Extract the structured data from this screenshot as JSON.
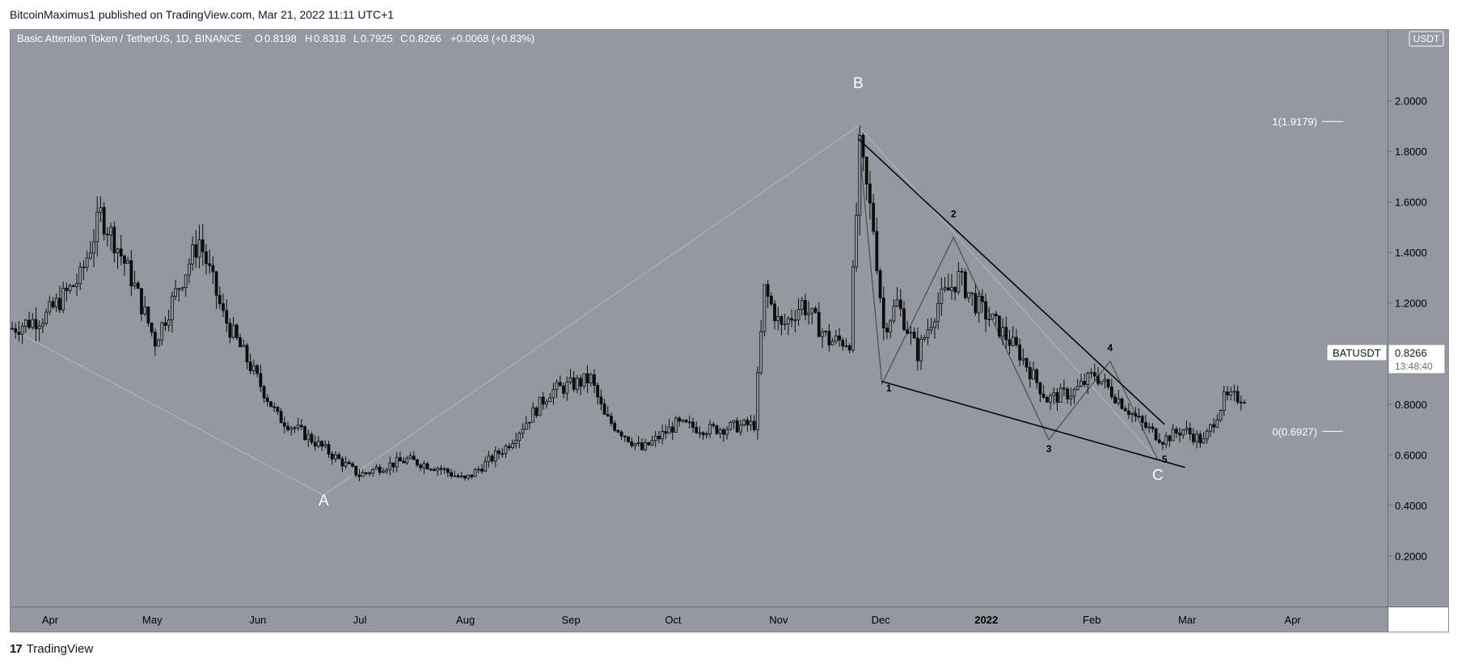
{
  "header": {
    "publisher_line": "BitcoinMaximus1 published on TradingView.com, Mar 21, 2022 11:11 UTC+1"
  },
  "legend": {
    "symbol": "Basic Attention Token / TetherUS, 1D, BINANCE",
    "o_label": "O",
    "o_value": "0.8198",
    "h_label": "H",
    "h_value": "0.8318",
    "l_label": "L",
    "l_value": "0.7925",
    "c_label": "C",
    "c_value": "0.8266",
    "change": "+0.0068 (+0.83%)"
  },
  "currency_badge": "USDT",
  "price_tag": {
    "symbol": "BATUSDT",
    "price": "0.8266",
    "countdown": "13:48:40"
  },
  "footer": {
    "logo_mark": "17",
    "brand": "TradingView"
  },
  "colors": {
    "chart_bg": "#9598a1",
    "price_axis_bg": "#9598a1",
    "candle": "#0d0d0d",
    "axis_text": "#000000",
    "annotation_white": "#ffffff",
    "zigzag_gray": "#b5b8bf",
    "wedge_line": "#000000"
  },
  "chart_data": {
    "type": "candlestick",
    "title": "Basic Attention Token / TetherUS, 1D, BINANCE",
    "x_ticks": [
      "Apr",
      "May",
      "Jun",
      "Jul",
      "Aug",
      "Sep",
      "Oct",
      "Nov",
      "Dec",
      "2022",
      "Feb",
      "Mar",
      "Apr"
    ],
    "y_ticks": [
      "0.2000",
      "0.4000",
      "0.6000",
      "0.8000",
      "1.0000",
      "1.2000",
      "1.4000",
      "1.6000",
      "1.8000",
      "2.0000"
    ],
    "ylim": [
      0.0,
      2.28
    ],
    "x_range_days": [
      0,
      396
    ],
    "series": [
      {
        "name": "BATUSDT",
        "key_points": [
          [
            0,
            1.1
          ],
          [
            10,
            1.15
          ],
          [
            20,
            1.3
          ],
          [
            26,
            1.55
          ],
          [
            30,
            1.45
          ],
          [
            35,
            1.3
          ],
          [
            42,
            1.05
          ],
          [
            50,
            1.3
          ],
          [
            55,
            1.45
          ],
          [
            62,
            1.15
          ],
          [
            70,
            0.95
          ],
          [
            78,
            0.75
          ],
          [
            86,
            0.68
          ],
          [
            94,
            0.6
          ],
          [
            102,
            0.52
          ],
          [
            108,
            0.55
          ],
          [
            116,
            0.58
          ],
          [
            125,
            0.55
          ],
          [
            133,
            0.5
          ],
          [
            145,
            0.63
          ],
          [
            158,
            0.85
          ],
          [
            170,
            0.9
          ],
          [
            174,
            0.75
          ],
          [
            185,
            0.62
          ],
          [
            195,
            0.72
          ],
          [
            205,
            0.7
          ],
          [
            218,
            0.72
          ],
          [
            221,
            1.25
          ],
          [
            226,
            1.1
          ],
          [
            232,
            1.2
          ],
          [
            240,
            1.05
          ],
          [
            246,
            1.05
          ],
          [
            249,
            1.8
          ],
          [
            253,
            1.5
          ],
          [
            256,
            1.1
          ],
          [
            260,
            1.2
          ],
          [
            266,
            1.0
          ],
          [
            272,
            1.2
          ],
          [
            278,
            1.3
          ],
          [
            283,
            1.2
          ],
          [
            290,
            1.1
          ],
          [
            296,
            1.0
          ],
          [
            304,
            0.82
          ],
          [
            312,
            0.85
          ],
          [
            318,
            0.92
          ],
          [
            325,
            0.82
          ],
          [
            332,
            0.72
          ],
          [
            338,
            0.66
          ],
          [
            344,
            0.7
          ],
          [
            350,
            0.65
          ],
          [
            356,
            0.82
          ],
          [
            362,
            0.83
          ]
        ]
      }
    ],
    "annotations": {
      "wave_labels": [
        {
          "text": "A",
          "date": 92,
          "price": 0.4
        },
        {
          "text": "B",
          "date": 249,
          "price": 2.05
        },
        {
          "text": "C",
          "date": 337,
          "price": 0.5
        },
        {
          "text": "1",
          "date": 258,
          "price": 0.85
        },
        {
          "text": "2",
          "date": 277,
          "price": 1.54
        },
        {
          "text": "3",
          "date": 305,
          "price": 0.61
        },
        {
          "text": "4",
          "date": 323,
          "price": 1.01
        },
        {
          "text": "5",
          "date": 339,
          "price": 0.57
        }
      ],
      "fib_levels": [
        {
          "label": "1(1.9179)",
          "price": 1.9179
        },
        {
          "label": "0(0.6927)",
          "price": 0.6927
        }
      ],
      "abc_zigzag": [
        [
          0,
          1.1
        ],
        [
          92,
          0.44
        ],
        [
          249,
          1.9
        ],
        [
          337,
          0.58
        ]
      ],
      "wave_zigzag": [
        [
          249,
          1.87
        ],
        [
          256,
          0.88
        ],
        [
          277,
          1.46
        ],
        [
          305,
          0.66
        ],
        [
          323,
          0.97
        ],
        [
          337,
          0.58
        ]
      ],
      "wedge_lines": [
        [
          [
            249,
            1.85
          ],
          [
            339,
            0.72
          ]
        ],
        [
          [
            256,
            0.89
          ],
          [
            345,
            0.55
          ]
        ]
      ]
    }
  }
}
